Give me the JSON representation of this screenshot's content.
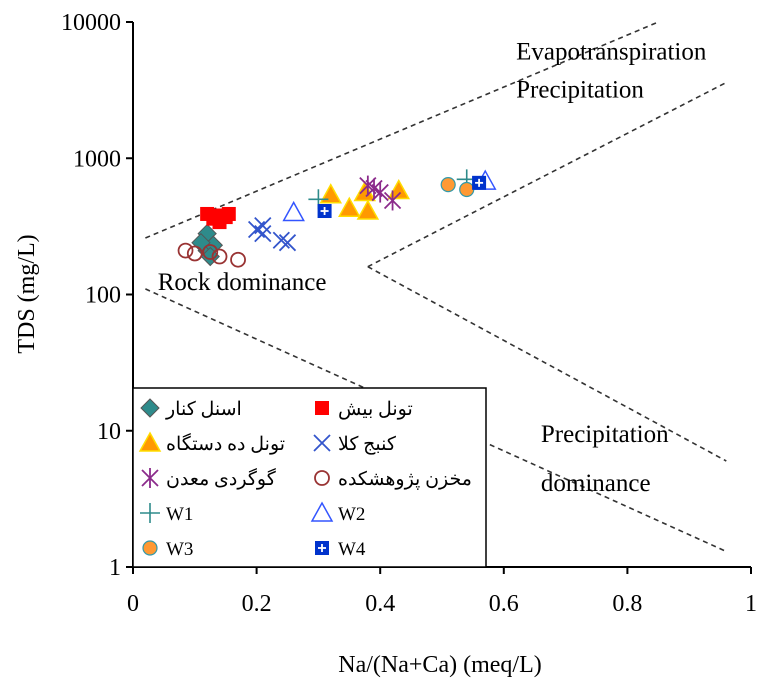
{
  "chart_data": {
    "type": "scatter",
    "title": "",
    "xlabel": "Na/(Na+Ca) (meq/L)",
    "ylabel": "TDS (mg/L)",
    "xlim": [
      0,
      1
    ],
    "ylim": [
      1,
      10000
    ],
    "y_scale": "log",
    "grid": false,
    "legend_placement": "bottom-left",
    "x_ticks": [
      "0",
      "0.2",
      "0.4",
      "0.6",
      "0.8",
      "1"
    ],
    "x_tick_values": [
      0,
      0.2,
      0.4,
      0.6,
      0.8,
      1
    ],
    "y_ticks": [
      "1",
      "10",
      "100",
      "1000",
      "10000"
    ],
    "y_tick_values": [
      1,
      10,
      100,
      1000,
      10000
    ],
    "annotations": [
      {
        "text": "Evapotranspiration",
        "x": 0.62,
        "y": 5300
      },
      {
        "text": "Precipitation",
        "x": 0.62,
        "y": 2800
      },
      {
        "text": "Rock dominance",
        "x": 0.04,
        "y": 108
      },
      {
        "text": "Precipitation",
        "x": 0.66,
        "y": 8.3
      },
      {
        "text": "dominance",
        "x": 0.66,
        "y": 3.6
      }
    ],
    "boundaries": [
      {
        "name": "evaporation-upper",
        "points": [
          [
            0.02,
            260
          ],
          [
            0.85,
            10000
          ]
        ]
      },
      {
        "name": "evaporation-lower",
        "points": [
          [
            0.38,
            160
          ],
          [
            0.96,
            3600
          ]
        ]
      },
      {
        "name": "precipitation-upper",
        "points": [
          [
            0.38,
            160
          ],
          [
            0.96,
            6
          ]
        ]
      },
      {
        "name": "precipitation-lower",
        "points": [
          [
            0.02,
            110
          ],
          [
            0.96,
            1.3
          ]
        ]
      }
    ],
    "series": [
      {
        "name": "اسنل کنار",
        "marker": "diamond",
        "color": "#2e8b8b",
        "points": [
          [
            0.12,
            210
          ],
          [
            0.12,
            280
          ],
          [
            0.13,
            230
          ],
          [
            0.11,
            240
          ],
          [
            0.125,
            190
          ]
        ]
      },
      {
        "name": "تونل بیش",
        "marker": "square",
        "color": "#ff0000",
        "points": [
          [
            0.12,
            390
          ],
          [
            0.13,
            360
          ],
          [
            0.15,
            370
          ],
          [
            0.155,
            390
          ],
          [
            0.14,
            340
          ],
          [
            0.135,
            380
          ]
        ]
      },
      {
        "name": "تونل ده دستگاه",
        "marker": "triangle",
        "color": "#ff9900",
        "points": [
          [
            0.32,
            540
          ],
          [
            0.35,
            430
          ],
          [
            0.38,
            410
          ],
          [
            0.375,
            560
          ],
          [
            0.43,
            580
          ]
        ]
      },
      {
        "name": "کنبج کلا",
        "marker": "x",
        "color": "#3355cc",
        "points": [
          [
            0.21,
            320
          ],
          [
            0.21,
            280
          ],
          [
            0.2,
            300
          ],
          [
            0.24,
            250
          ],
          [
            0.25,
            240
          ]
        ]
      },
      {
        "name": "گوگردی معدن",
        "marker": "asterisk",
        "color": "#8b2a8b",
        "points": [
          [
            0.38,
            630
          ],
          [
            0.39,
            600
          ],
          [
            0.4,
            560
          ],
          [
            0.42,
            490
          ]
        ]
      },
      {
        "name": "مخزن پژوهشکده",
        "marker": "circle-open",
        "color": "#993333",
        "points": [
          [
            0.085,
            210
          ],
          [
            0.1,
            200
          ],
          [
            0.125,
            205
          ],
          [
            0.14,
            190
          ],
          [
            0.17,
            180
          ]
        ]
      },
      {
        "name": "W1",
        "marker": "plus",
        "color": "#2e8b8b",
        "points": [
          [
            0.3,
            500
          ],
          [
            0.54,
            700
          ]
        ]
      },
      {
        "name": "W2",
        "marker": "triangle-open",
        "color": "#3355ff",
        "points": [
          [
            0.26,
            400
          ],
          [
            0.57,
            680
          ]
        ]
      },
      {
        "name": "W3",
        "marker": "circle-filled",
        "color": "#ff9933",
        "points": [
          [
            0.51,
            640
          ],
          [
            0.54,
            590
          ]
        ]
      },
      {
        "name": "W4",
        "marker": "square-plus",
        "color": "#0033cc",
        "points": [
          [
            0.31,
            410
          ],
          [
            0.56,
            660
          ]
        ]
      }
    ]
  }
}
